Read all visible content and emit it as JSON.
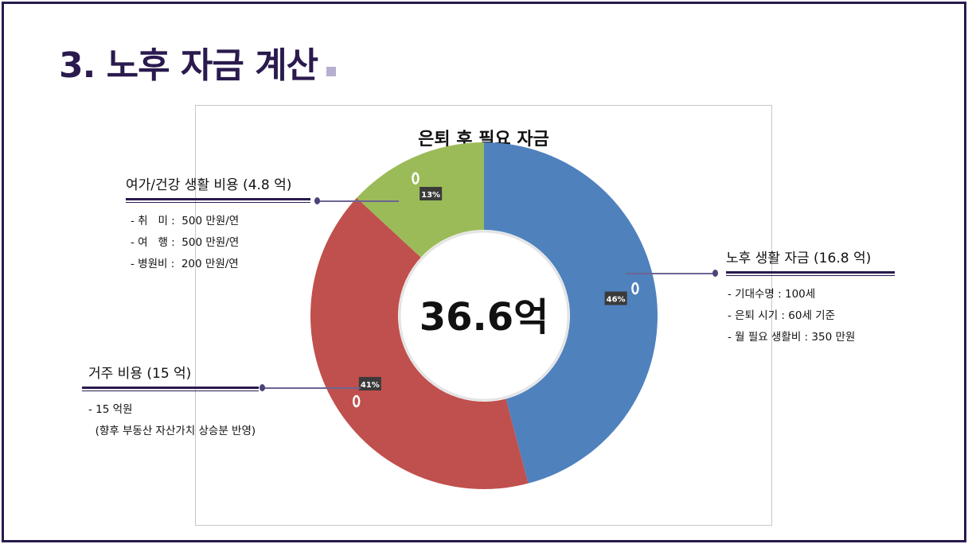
{
  "page": {
    "title": "3. 노후 자금 계산"
  },
  "chart_data": {
    "type": "pie",
    "title": "은퇴 후 필요 자금",
    "center_label": "36.6억",
    "slices": [
      {
        "name": "노후 생활 자금",
        "value": 16.8,
        "percent_label": "46%",
        "color": "#4f81bd"
      },
      {
        "name": "거주 비용",
        "value": 15,
        "percent_label": "41%",
        "color": "#c0504d"
      },
      {
        "name": "여가/건강 생활 비용",
        "value": 4.8,
        "percent_label": "13%",
        "color": "#9bbb59"
      }
    ]
  },
  "callouts": {
    "leisure": {
      "heading": "여가/건강 생활 비용 (4.8 억)",
      "items": [
        "- 취   미 :  500 만원/연",
        "- 여   행 :  500 만원/연",
        "- 병원비 :  200 만원/연"
      ]
    },
    "living": {
      "heading": "노후 생활 자금 (16.8 억)",
      "items": [
        "- 기대수명 : 100세",
        "- 은퇴 시기 : 60세 기준",
        "- 월 필요 생활비 : 350 만원"
      ]
    },
    "housing": {
      "heading": "거주 비용 (15 억)",
      "items": [
        "- 15 억원",
        "  (향후 부동산 자산가치 상승분 반영)"
      ]
    }
  }
}
